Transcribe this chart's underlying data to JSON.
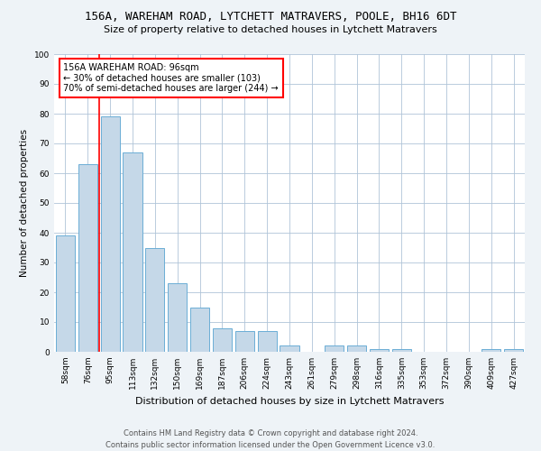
{
  "title": "156A, WAREHAM ROAD, LYTCHETT MATRAVERS, POOLE, BH16 6DT",
  "subtitle": "Size of property relative to detached houses in Lytchett Matravers",
  "xlabel": "Distribution of detached houses by size in Lytchett Matravers",
  "ylabel": "Number of detached properties",
  "footer_line1": "Contains HM Land Registry data © Crown copyright and database right 2024.",
  "footer_line2": "Contains public sector information licensed under the Open Government Licence v3.0.",
  "categories": [
    "58sqm",
    "76sqm",
    "95sqm",
    "113sqm",
    "132sqm",
    "150sqm",
    "169sqm",
    "187sqm",
    "206sqm",
    "224sqm",
    "243sqm",
    "261sqm",
    "279sqm",
    "298sqm",
    "316sqm",
    "335sqm",
    "353sqm",
    "372sqm",
    "390sqm",
    "409sqm",
    "427sqm"
  ],
  "values": [
    39,
    63,
    79,
    67,
    35,
    23,
    15,
    8,
    7,
    7,
    2,
    0,
    2,
    2,
    1,
    1,
    0,
    0,
    0,
    1,
    1
  ],
  "bar_color": "#c5d8e8",
  "bar_edge_color": "#6baed6",
  "vline_x": 1.5,
  "vline_color": "red",
  "annotation_text": "156A WAREHAM ROAD: 96sqm\n← 30% of detached houses are smaller (103)\n70% of semi-detached houses are larger (244) →",
  "annotation_box_color": "white",
  "annotation_box_edge_color": "red",
  "ylim": [
    0,
    100
  ],
  "yticks": [
    0,
    10,
    20,
    30,
    40,
    50,
    60,
    70,
    80,
    90,
    100
  ],
  "bg_color": "#eef3f7",
  "plot_bg_color": "white",
  "title_fontsize": 9,
  "subtitle_fontsize": 8,
  "ylabel_fontsize": 7.5,
  "xlabel_fontsize": 8,
  "tick_fontsize": 6.5,
  "annotation_fontsize": 7,
  "footer_fontsize": 6,
  "grid_color": "#b0c4d8"
}
